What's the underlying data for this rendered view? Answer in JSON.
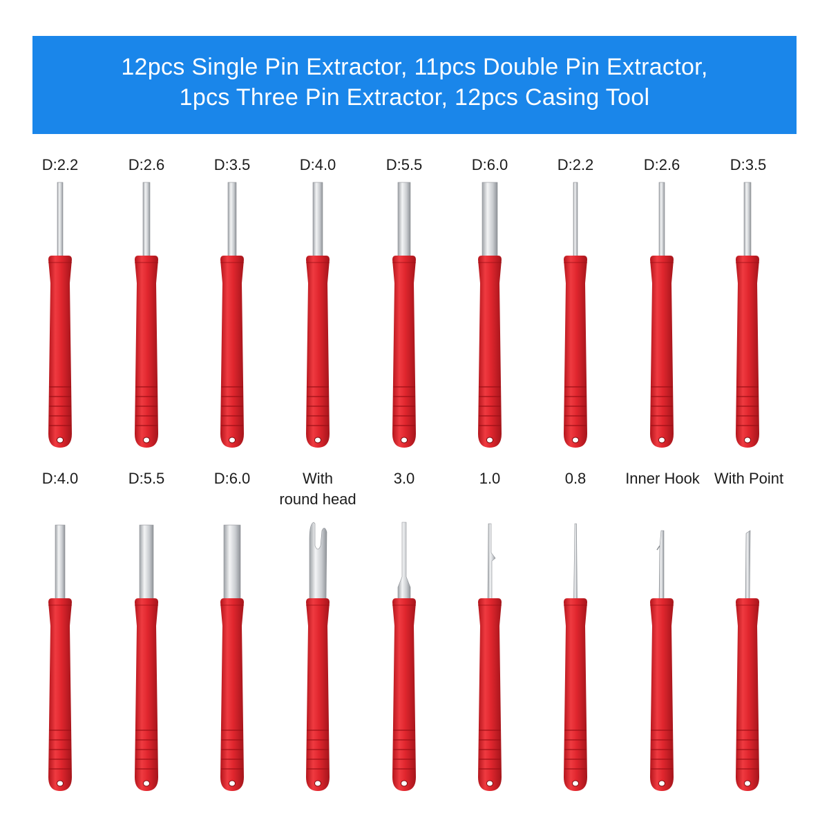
{
  "banner": {
    "line1": "12pcs Single Pin Extractor, 11pcs Double Pin Extractor,",
    "line2": "1pcs Three Pin Extractor, 12pcs Casing Tool",
    "background_color": "#1a86ea",
    "text_color": "#ffffff"
  },
  "colors": {
    "handle": "#e0262e",
    "handle_dark": "#a5151b",
    "metal": "#d7d9dc"
  },
  "row1": {
    "labels": [
      "D:2.2",
      "D:2.6",
      "D:3.5",
      "D:4.0",
      "D:5.5",
      "D:6.0",
      "D:2.2",
      "D:2.6",
      "D:3.5"
    ]
  },
  "row2": {
    "labels": [
      "D:4.0",
      "D:5.5",
      "D:6.0",
      "With",
      "round head",
      "3.0",
      "1.0",
      "0.8",
      "Inner Hook",
      "With Point"
    ]
  }
}
